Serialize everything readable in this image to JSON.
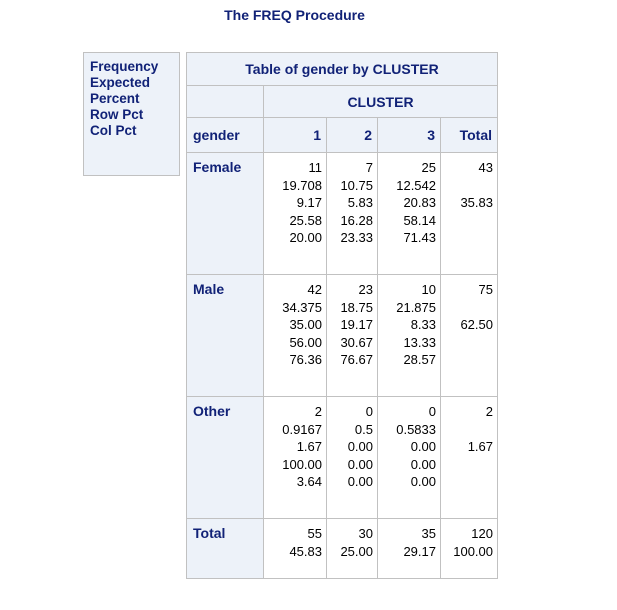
{
  "procedure_title": "The FREQ Procedure",
  "legend": [
    "Frequency",
    "Expected",
    "Percent",
    "Row Pct",
    "Col Pct"
  ],
  "table": {
    "title": "Table of gender by CLUSTER",
    "col_var": "CLUSTER",
    "row_var": "gender",
    "columns": [
      "1",
      "2",
      "3",
      "Total"
    ],
    "rows": [
      {
        "label": "Female",
        "cells": [
          [
            "11",
            "19.708",
            "9.17",
            "25.58",
            "20.00"
          ],
          [
            "7",
            "10.75",
            "5.83",
            "16.28",
            "23.33"
          ],
          [
            "25",
            "12.542",
            "20.83",
            "58.14",
            "71.43"
          ],
          [
            "43",
            "",
            "35.83",
            "",
            ""
          ]
        ]
      },
      {
        "label": "Male",
        "cells": [
          [
            "42",
            "34.375",
            "35.00",
            "56.00",
            "76.36"
          ],
          [
            "23",
            "18.75",
            "19.17",
            "30.67",
            "76.67"
          ],
          [
            "10",
            "21.875",
            "8.33",
            "13.33",
            "28.57"
          ],
          [
            "75",
            "",
            "62.50",
            "",
            ""
          ]
        ]
      },
      {
        "label": "Other",
        "cells": [
          [
            "2",
            "0.9167",
            "1.67",
            "100.00",
            "3.64"
          ],
          [
            "0",
            "0.5",
            "0.00",
            "0.00",
            "0.00"
          ],
          [
            "0",
            "0.5833",
            "0.00",
            "0.00",
            "0.00"
          ],
          [
            "2",
            "",
            "1.67",
            "",
            ""
          ]
        ]
      },
      {
        "label": "Total",
        "cells": [
          [
            "55",
            "45.83"
          ],
          [
            "30",
            "25.00"
          ],
          [
            "35",
            "29.17"
          ],
          [
            "120",
            "100.00"
          ]
        ]
      }
    ]
  }
}
